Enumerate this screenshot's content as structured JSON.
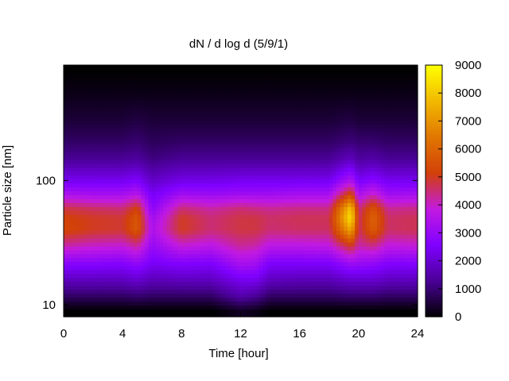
{
  "chart_data": {
    "type": "heatmap",
    "title": "dN / d log d (5/9/1)",
    "xlabel": "Time [hour]",
    "ylabel": "Particle size [nm]",
    "xlim": [
      0,
      24
    ],
    "ylim": [
      8,
      850
    ],
    "yscale": "log",
    "x_ticks": [
      0,
      4,
      8,
      12,
      16,
      20,
      24
    ],
    "y_ticks": [
      10,
      100
    ],
    "colorbar": {
      "range": [
        0,
        9000
      ],
      "ticks": [
        0,
        1000,
        2000,
        3000,
        4000,
        5000,
        6000,
        7000,
        8000,
        9000
      ],
      "colormap": "gnuplot",
      "colors": [
        "#000000",
        "#4a0096",
        "#7f00ff",
        "#c21ae1",
        "#d2400a",
        "#e07600",
        "#f2b800",
        "#ffff00"
      ]
    },
    "particle_size_nm": [
      9,
      12,
      16,
      22,
      30,
      40,
      50,
      60,
      80,
      100,
      150,
      200,
      300,
      500,
      800
    ],
    "time_hour": [
      0,
      2,
      4,
      5,
      6,
      8,
      10,
      12,
      13,
      14,
      16,
      18,
      19.5,
      20,
      21,
      22,
      24
    ],
    "dN_dlogd": [
      [
        0,
        900,
        1800,
        2800,
        4200,
        5300,
        5200,
        4800,
        3300,
        2400,
        1300,
        900,
        500,
        200,
        0
      ],
      [
        0,
        900,
        1800,
        2800,
        4000,
        5000,
        5000,
        4600,
        3200,
        2400,
        1300,
        900,
        500,
        200,
        0
      ],
      [
        0,
        900,
        1800,
        2700,
        3900,
        4900,
        4900,
        4500,
        3200,
        2400,
        1300,
        900,
        500,
        200,
        0
      ],
      [
        0,
        1000,
        2000,
        3000,
        4300,
        5700,
        5700,
        5200,
        3500,
        2600,
        1400,
        1000,
        600,
        200,
        0
      ],
      [
        0,
        900,
        1700,
        2500,
        3000,
        3400,
        3200,
        2800,
        2400,
        1900,
        1100,
        800,
        500,
        200,
        0
      ],
      [
        0,
        900,
        1800,
        2700,
        3900,
        5000,
        5000,
        4500,
        3100,
        2300,
        1300,
        900,
        500,
        200,
        0
      ],
      [
        0,
        900,
        1800,
        2600,
        3700,
        4500,
        4500,
        4200,
        3000,
        2300,
        1300,
        900,
        500,
        200,
        0
      ],
      [
        300,
        1600,
        2400,
        3400,
        4300,
        4800,
        4800,
        4500,
        3100,
        2400,
        1300,
        900,
        500,
        200,
        0
      ],
      [
        200,
        1400,
        2400,
        3300,
        4200,
        4800,
        4800,
        4400,
        3100,
        2400,
        1300,
        900,
        500,
        200,
        0
      ],
      [
        0,
        900,
        1800,
        2600,
        3700,
        4500,
        4600,
        4300,
        3100,
        2400,
        1300,
        900,
        500,
        200,
        0
      ],
      [
        0,
        900,
        1700,
        2600,
        3700,
        4600,
        4700,
        4400,
        3200,
        2400,
        1300,
        900,
        500,
        200,
        0
      ],
      [
        0,
        900,
        1700,
        2600,
        3800,
        4600,
        4700,
        4400,
        3200,
        2400,
        1300,
        900,
        500,
        200,
        0
      ],
      [
        0,
        1000,
        2000,
        3200,
        5000,
        7400,
        8600,
        8000,
        5200,
        3500,
        1800,
        1100,
        600,
        200,
        0
      ],
      [
        0,
        1000,
        2000,
        3100,
        4200,
        4600,
        4600,
        4400,
        3300,
        2500,
        1400,
        1000,
        500,
        200,
        0
      ],
      [
        0,
        1000,
        2000,
        3000,
        4400,
        5800,
        6000,
        5600,
        3900,
        2800,
        1500,
        1000,
        500,
        200,
        0
      ],
      [
        0,
        900,
        1800,
        2700,
        3800,
        4600,
        4600,
        4300,
        3100,
        2400,
        1300,
        900,
        500,
        200,
        0
      ],
      [
        0,
        900,
        1800,
        2700,
        3900,
        4700,
        4700,
        4400,
        3200,
        2400,
        1300,
        900,
        500,
        200,
        0
      ]
    ]
  }
}
